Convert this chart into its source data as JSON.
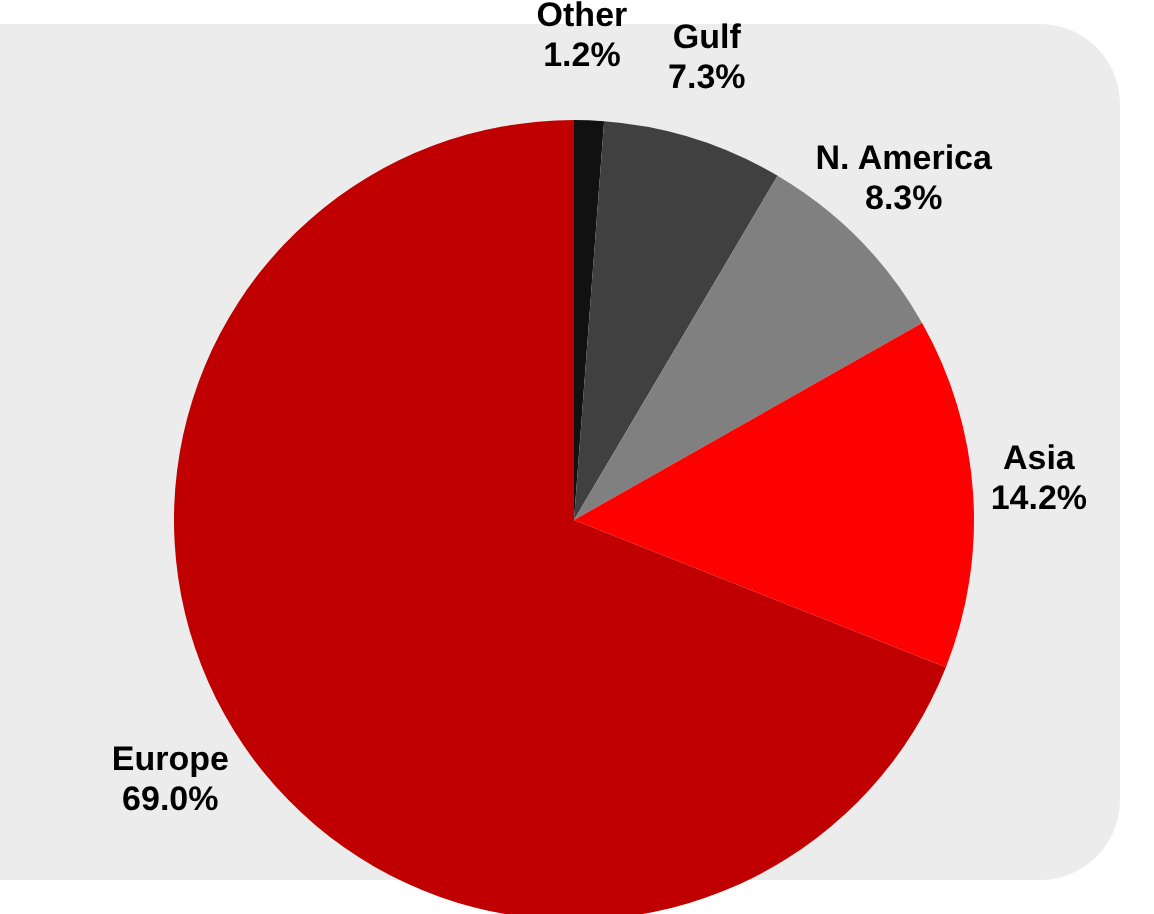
{
  "chart_data": {
    "type": "pie",
    "categories": [
      "Other",
      "Gulf",
      "N. America",
      "Asia",
      "Europe"
    ],
    "values": [
      1.2,
      7.3,
      8.3,
      14.2,
      69.0
    ],
    "value_labels": [
      "1.2%",
      "7.3%",
      "8.3%",
      "14.2%",
      "69.0%"
    ],
    "colors": [
      "#111111",
      "#404040",
      "#808080",
      "#ff0000",
      "#c00000"
    ],
    "legend": false
  }
}
